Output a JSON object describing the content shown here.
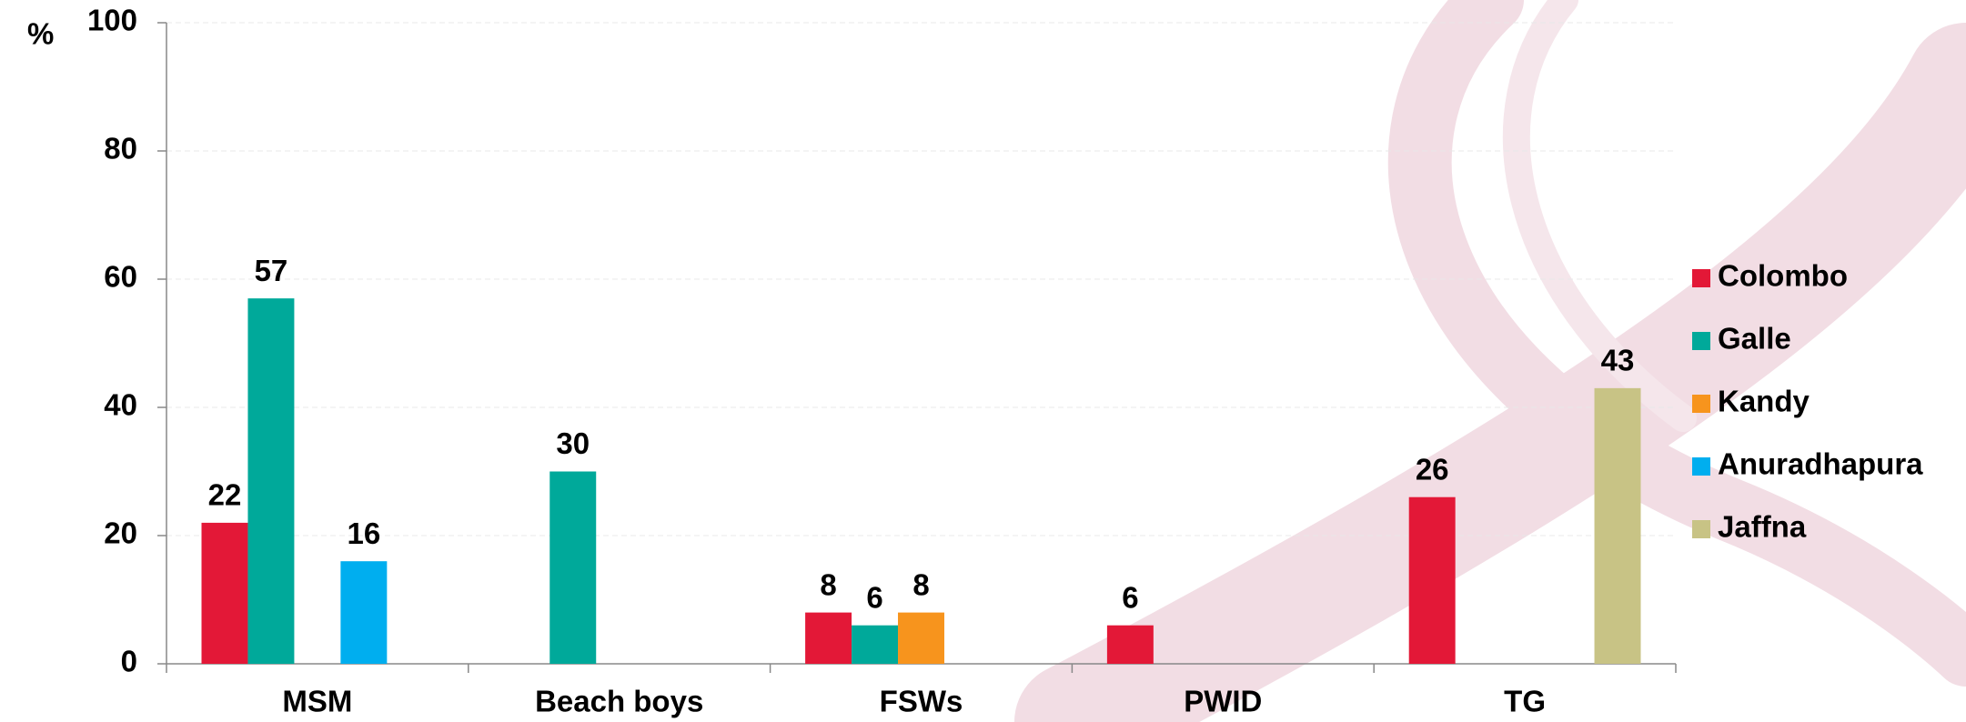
{
  "chart_data": {
    "type": "bar",
    "y_label": "%",
    "categories": [
      "MSM",
      "Beach boys",
      "FSWs",
      "PWID",
      "TG"
    ],
    "series": [
      {
        "name": "Colombo",
        "color": "#e31837",
        "values": [
          22,
          null,
          8,
          6,
          26
        ]
      },
      {
        "name": "Galle",
        "color": "#00a99a",
        "values": [
          57,
          30,
          6,
          null,
          null
        ]
      },
      {
        "name": "Kandy",
        "color": "#f7941d",
        "values": [
          null,
          null,
          8,
          null,
          null
        ]
      },
      {
        "name": "Anuradhapura",
        "color": "#00aeef",
        "values": [
          16,
          null,
          null,
          null,
          null
        ]
      },
      {
        "name": "Jaffna",
        "color": "#c8c385",
        "values": [
          null,
          null,
          null,
          null,
          43
        ]
      }
    ],
    "ylim": [
      0,
      100
    ],
    "yticks": [
      0,
      20,
      40,
      60,
      80,
      100
    ],
    "grid": true,
    "legend": "right"
  }
}
